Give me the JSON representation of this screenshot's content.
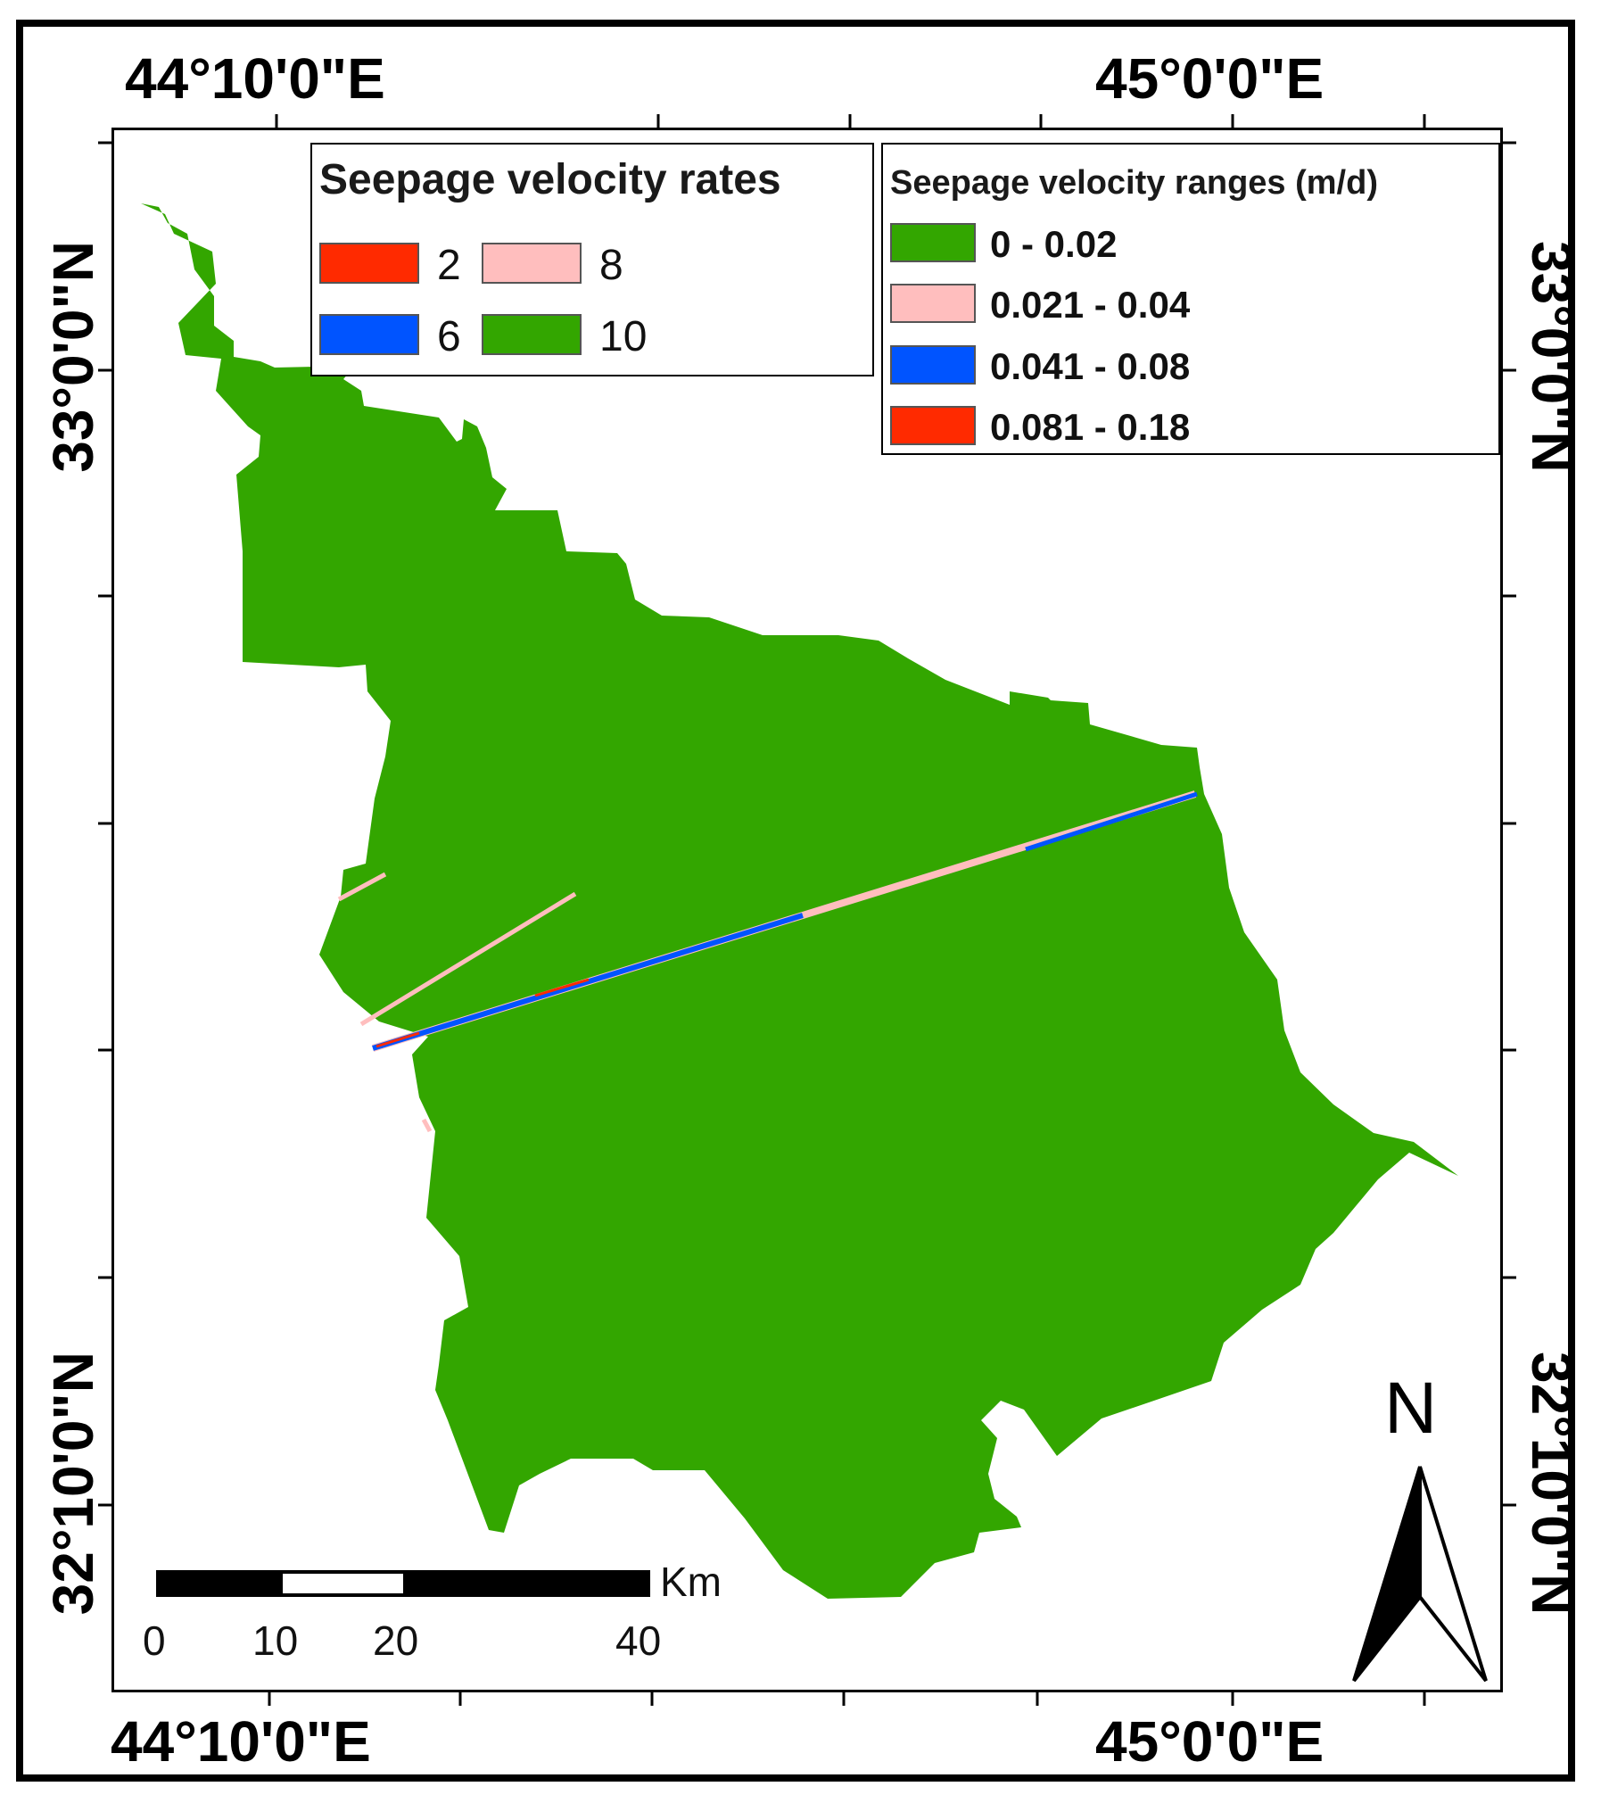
{
  "coordinates": {
    "top_left": "44°10'0\"E",
    "top_right": "45°0'0\"E",
    "bottom_left": "44°10'0\"E",
    "bottom_right": "45°0'0\"E",
    "left_top": "33°0'0\"N",
    "left_bottom": "32°10'0\"N",
    "right_top": "33°0'0\"N",
    "right_bottom": "32°10'0\"N"
  },
  "legend_rates": {
    "title": "Seepage velocity rates",
    "items": [
      {
        "label": "2",
        "color": "#ff2a00"
      },
      {
        "label": "8",
        "color": "#ffbebe"
      },
      {
        "label": "6",
        "color": "#0054ff"
      },
      {
        "label": "10",
        "color": "#33a600"
      }
    ]
  },
  "legend_ranges": {
    "title": "Seepage velocity ranges (m/d)",
    "items": [
      {
        "label": "0 - 0.02",
        "color": "#33a600"
      },
      {
        "label": "0.021 - 0.04",
        "color": "#ffbebe"
      },
      {
        "label": "0.041 - 0.08",
        "color": "#0054ff"
      },
      {
        "label": "0.081 - 0.18",
        "color": "#ff2a00"
      }
    ]
  },
  "scale_bar": {
    "unit": "Km",
    "labels": [
      "0",
      "10",
      "20",
      "40"
    ]
  },
  "north_arrow": {
    "label": "N"
  },
  "colors": {
    "region": "#33a600",
    "channel_blue": "#0054ff",
    "channel_pink": "#ffbebe",
    "channel_red": "#ff2a00"
  }
}
